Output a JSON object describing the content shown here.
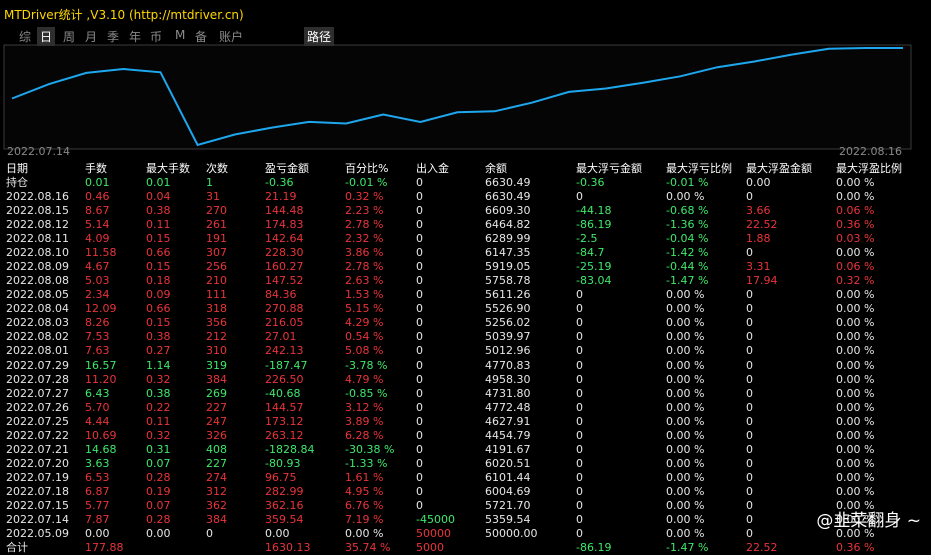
{
  "title": "MTDriver统计 ,V3.10 (http://mtdriver.cn)",
  "tabs": [
    "综",
    "日",
    "周",
    "月",
    "季",
    "年",
    "币",
    "M",
    "备",
    "账户",
    "路径"
  ],
  "chart": {
    "x_start": "2022.07.14",
    "x_end": "2022.08.16"
  },
  "table": {
    "header": [
      "日期",
      "手数",
      "最大手数",
      "次数",
      "盈亏金额",
      "百分比%",
      "出入金",
      "余额",
      "最大浮亏金额",
      "最大浮亏比例",
      "最大浮盈金额",
      "最大浮盈比例"
    ],
    "rows": [
      {
        "tone": "green",
        "cells": [
          "持仓",
          "0.01",
          "0.01",
          "1",
          "-0.36",
          "-0.01 %",
          "0",
          "6630.49",
          "-0.36",
          "-0.01 %",
          "0.00",
          "0.00 %"
        ]
      },
      {
        "tone": "red",
        "cells": [
          "2022.08.16",
          "0.46",
          "0.04",
          "31",
          "21.19",
          "0.32 %",
          "0",
          "6630.49",
          "0",
          "0.00 %",
          "0",
          "0.00 %"
        ]
      },
      {
        "tone": "red",
        "cells": [
          "2022.08.15",
          "8.67",
          "0.38",
          "270",
          "144.48",
          "2.23 %",
          "0",
          "6609.30",
          "-44.18",
          "-0.68 %",
          "3.66",
          "0.06 %"
        ]
      },
      {
        "tone": "red",
        "cells": [
          "2022.08.12",
          "5.14",
          "0.11",
          "261",
          "174.83",
          "2.78 %",
          "0",
          "6464.82",
          "-86.19",
          "-1.36 %",
          "22.52",
          "0.36 %"
        ]
      },
      {
        "tone": "red",
        "cells": [
          "2022.08.11",
          "4.09",
          "0.15",
          "191",
          "142.64",
          "2.32 %",
          "0",
          "6289.99",
          "-2.5",
          "-0.04 %",
          "1.88",
          "0.03 %"
        ]
      },
      {
        "tone": "red",
        "cells": [
          "2022.08.10",
          "11.58",
          "0.66",
          "307",
          "228.30",
          "3.86 %",
          "0",
          "6147.35",
          "-84.7",
          "-1.42 %",
          "0",
          "0.00 %"
        ]
      },
      {
        "tone": "red",
        "cells": [
          "2022.08.09",
          "4.67",
          "0.15",
          "256",
          "160.27",
          "2.78 %",
          "0",
          "5919.05",
          "-25.19",
          "-0.44 %",
          "3.31",
          "0.06 %"
        ]
      },
      {
        "tone": "red",
        "cells": [
          "2022.08.08",
          "5.03",
          "0.18",
          "210",
          "147.52",
          "2.63 %",
          "0",
          "5758.78",
          "-83.04",
          "-1.47 %",
          "17.94",
          "0.32 %"
        ]
      },
      {
        "tone": "red",
        "cells": [
          "2022.08.05",
          "2.34",
          "0.09",
          "111",
          "84.36",
          "1.53 %",
          "0",
          "5611.26",
          "0",
          "0.00 %",
          "0",
          "0.00 %"
        ]
      },
      {
        "tone": "red",
        "cells": [
          "2022.08.04",
          "12.09",
          "0.66",
          "318",
          "270.88",
          "5.15 %",
          "0",
          "5526.90",
          "0",
          "0.00 %",
          "0",
          "0.00 %"
        ]
      },
      {
        "tone": "red",
        "cells": [
          "2022.08.03",
          "8.26",
          "0.15",
          "356",
          "216.05",
          "4.29 %",
          "0",
          "5256.02",
          "0",
          "0.00 %",
          "0",
          "0.00 %"
        ]
      },
      {
        "tone": "red",
        "cells": [
          "2022.08.02",
          "7.53",
          "0.38",
          "212",
          "27.01",
          "0.54 %",
          "0",
          "5039.97",
          "0",
          "0.00 %",
          "0",
          "0.00 %"
        ]
      },
      {
        "tone": "red",
        "cells": [
          "2022.08.01",
          "7.63",
          "0.27",
          "310",
          "242.13",
          "5.08 %",
          "0",
          "5012.96",
          "0",
          "0.00 %",
          "0",
          "0.00 %"
        ]
      },
      {
        "tone": "green",
        "cells": [
          "2022.07.29",
          "16.57",
          "1.14",
          "319",
          "-187.47",
          "-3.78 %",
          "0",
          "4770.83",
          "0",
          "0.00 %",
          "0",
          "0.00 %"
        ]
      },
      {
        "tone": "red",
        "cells": [
          "2022.07.28",
          "11.20",
          "0.32",
          "384",
          "226.50",
          "4.79 %",
          "0",
          "4958.30",
          "0",
          "0.00 %",
          "0",
          "0.00 %"
        ]
      },
      {
        "tone": "green",
        "cells": [
          "2022.07.27",
          "6.43",
          "0.38",
          "269",
          "-40.68",
          "-0.85 %",
          "0",
          "4731.80",
          "0",
          "0.00 %",
          "0",
          "0.00 %"
        ]
      },
      {
        "tone": "red",
        "cells": [
          "2022.07.26",
          "5.70",
          "0.22",
          "227",
          "144.57",
          "3.12 %",
          "0",
          "4772.48",
          "0",
          "0.00 %",
          "0",
          "0.00 %"
        ]
      },
      {
        "tone": "red",
        "cells": [
          "2022.07.25",
          "4.44",
          "0.11",
          "247",
          "173.12",
          "3.89 %",
          "0",
          "4627.91",
          "0",
          "0.00 %",
          "0",
          "0.00 %"
        ]
      },
      {
        "tone": "red",
        "cells": [
          "2022.07.22",
          "10.69",
          "0.32",
          "326",
          "263.12",
          "6.28 %",
          "0",
          "4454.79",
          "0",
          "0.00 %",
          "0",
          "0.00 %"
        ]
      },
      {
        "tone": "green",
        "cells": [
          "2022.07.21",
          "14.68",
          "0.31",
          "408",
          "-1828.84",
          "-30.38 %",
          "0",
          "4191.67",
          "0",
          "0.00 %",
          "0",
          "0.00 %"
        ]
      },
      {
        "tone": "green",
        "cells": [
          "2022.07.20",
          "3.63",
          "0.07",
          "227",
          "-80.93",
          "-1.33 %",
          "0",
          "6020.51",
          "0",
          "0.00 %",
          "0",
          "0.00 %"
        ]
      },
      {
        "tone": "red",
        "cells": [
          "2022.07.19",
          "6.53",
          "0.28",
          "274",
          "96.75",
          "1.61 %",
          "0",
          "6101.44",
          "0",
          "0.00 %",
          "0",
          "0.00 %"
        ]
      },
      {
        "tone": "red",
        "cells": [
          "2022.07.18",
          "6.87",
          "0.19",
          "312",
          "282.99",
          "4.95 %",
          "0",
          "6004.69",
          "0",
          "0.00 %",
          "0",
          "0.00 %"
        ]
      },
      {
        "tone": "red",
        "cells": [
          "2022.07.15",
          "5.77",
          "0.07",
          "362",
          "362.16",
          "6.76 %",
          "0",
          "5721.70",
          "0",
          "0.00 %",
          "0",
          "0.00 %"
        ]
      },
      {
        "tone": "red",
        "cells": [
          "2022.07.14",
          "7.87",
          "0.28",
          "384",
          "359.54",
          "7.19 %",
          "-45000",
          "5359.54",
          "0",
          "0.00 %",
          "0",
          "0.00 %"
        ]
      },
      {
        "tone": "white",
        "cells": [
          "2022.05.09",
          "0.00",
          "0.00",
          "0",
          "0.00",
          "0.00 %",
          "50000",
          "50000.00",
          "0",
          "0.00 %",
          "0",
          "0.00 %"
        ]
      },
      {
        "tone": "red",
        "cells": [
          "合计",
          "177.88",
          null,
          null,
          "1630.13",
          "35.74 %",
          "5000",
          null,
          "-86.19",
          "-1.47 %",
          "22.52",
          "0.36 %"
        ]
      }
    ]
  },
  "watermark": "@韭菜翻身 ~"
}
